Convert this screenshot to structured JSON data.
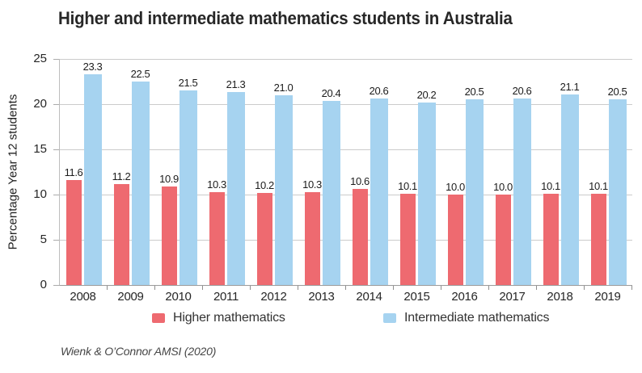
{
  "chart": {
    "title": "Higher and intermediate mathematics students in Australia",
    "ylabel": "Percentage Year 12 students",
    "source": "Wienk & O’Connor AMSI (2020)"
  },
  "colors": {
    "higher": "#ee6a70",
    "intermediate": "#a6d3f0",
    "gridline": "#cbcbcb"
  },
  "chart_data": {
    "type": "bar",
    "title": "Higher and intermediate mathematics students in Australia",
    "xlabel": "",
    "ylabel": "Percentage Year 12 students",
    "categories": [
      "2008",
      "2009",
      "2010",
      "2011",
      "2012",
      "2013",
      "2014",
      "2015",
      "2016",
      "2017",
      "2018",
      "2019"
    ],
    "series": [
      {
        "name": "Higher mathematics",
        "color": "#ee6a70",
        "values": [
          11.6,
          11.2,
          10.9,
          10.3,
          10.2,
          10.3,
          10.6,
          10.1,
          10.0,
          10.0,
          10.1,
          10.1
        ]
      },
      {
        "name": "Intermediate mathematics",
        "color": "#a6d3f0",
        "values": [
          23.3,
          22.5,
          21.5,
          21.3,
          21.0,
          20.4,
          20.6,
          20.2,
          20.5,
          20.6,
          21.1,
          20.5
        ]
      }
    ],
    "ylim": [
      0,
      25
    ],
    "ytick_interval": 5,
    "grid": true,
    "value_labels": true,
    "label_decimals": 1,
    "legend_position": "bottom",
    "source": "Wienk & O’Connor AMSI (2020)"
  }
}
